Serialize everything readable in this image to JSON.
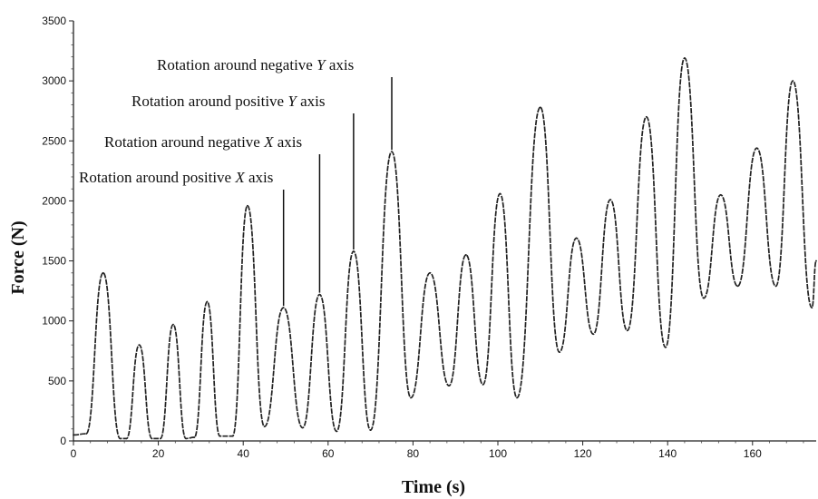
{
  "chart_data": {
    "type": "line",
    "title": "",
    "xlabel": "Time (s)",
    "ylabel": "Force (N)",
    "xlim": [
      0,
      175
    ],
    "ylim": [
      0,
      3500
    ],
    "x_ticks": [
      0,
      20,
      40,
      60,
      80,
      100,
      120,
      140,
      160
    ],
    "y_ticks": [
      0,
      500,
      1000,
      1500,
      2000,
      2500,
      3000,
      3500
    ],
    "grid": false,
    "legend": "none",
    "line_color": "#222222",
    "series": [
      {
        "x": [
          0,
          3,
          7,
          11,
          12.5,
          15.5,
          18.5,
          20.5,
          23.5,
          26.5,
          28.5,
          31.5,
          34.5,
          37.5,
          41,
          45,
          49.5,
          54,
          58,
          62,
          66,
          70,
          75,
          79.5,
          84,
          88.5,
          92.5,
          96.5,
          100.5,
          104.5,
          110,
          114.5,
          118.5,
          122.5,
          126.5,
          130.5,
          135,
          139.5,
          144,
          148.5,
          152.5,
          156.5,
          161,
          165.5,
          169.5,
          174,
          175
        ],
        "y": [
          50,
          60,
          1400,
          20,
          20,
          800,
          20,
          20,
          970,
          20,
          30,
          1160,
          40,
          40,
          1960,
          120,
          1110,
          110,
          1220,
          80,
          1580,
          90,
          2410,
          360,
          1400,
          460,
          1550,
          470,
          2060,
          360,
          2780,
          740,
          1690,
          890,
          2010,
          920,
          2700,
          780,
          3190,
          1190,
          2050,
          1290,
          2440,
          1290,
          3000,
          1110,
          1500
        ]
      }
    ],
    "annotations": [
      {
        "prefix": "Rotation around positive ",
        "axis": "X",
        "suffix": " axis",
        "x": 49.5,
        "y": 1110
      },
      {
        "prefix": "Rotation around negative ",
        "axis": "X",
        "suffix": " axis",
        "x": 58,
        "y": 1220
      },
      {
        "prefix": "Rotation around positive ",
        "axis": "Y",
        "suffix": " axis",
        "x": 66,
        "y": 1580
      },
      {
        "prefix": "Rotation around negative ",
        "axis": "Y",
        "suffix": " axis",
        "x": 75,
        "y": 2410
      }
    ]
  }
}
